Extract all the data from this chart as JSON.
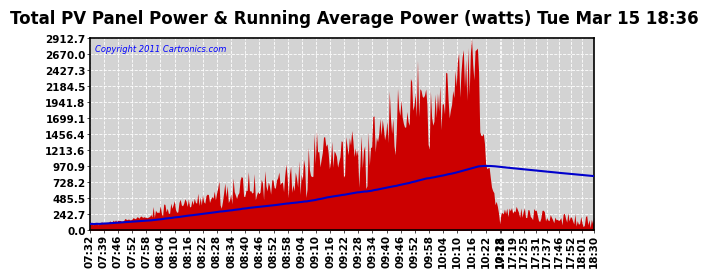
{
  "title": "Total PV Panel Power & Running Average Power (watts) Tue Mar 15 18:36",
  "copyright": "Copyright 2011 Cartronics.com",
  "background_color": "#ffffff",
  "plot_bg_color": "#d3d3d3",
  "bar_color": "#cc0000",
  "line_color": "#0000cc",
  "yticks": [
    0.0,
    242.7,
    485.5,
    728.2,
    970.9,
    1213.6,
    1456.4,
    1699.1,
    1941.8,
    2184.5,
    2427.3,
    2670.0,
    2912.7
  ],
  "ymax": 2912.7,
  "xtick_labels": [
    "07:32",
    "07:39",
    "07:46",
    "07:52",
    "07:58",
    "08:04",
    "08:10",
    "08:16",
    "08:22",
    "08:28",
    "08:34",
    "08:40",
    "08:46",
    "08:52",
    "08:58",
    "09:04",
    "09:10",
    "09:16",
    "09:22",
    "09:28",
    "09:34",
    "09:40",
    "09:46",
    "09:52",
    "09:58",
    "10:04",
    "10:10",
    "10:16",
    "10:22",
    "10:28",
    "17:13",
    "17:19",
    "17:25",
    "17:31",
    "17:37",
    "17:46",
    "17:52",
    "18:01",
    "18:30"
  ],
  "grid_color": "#ffffff",
  "title_fontsize": 12,
  "tick_fontsize": 7.5
}
